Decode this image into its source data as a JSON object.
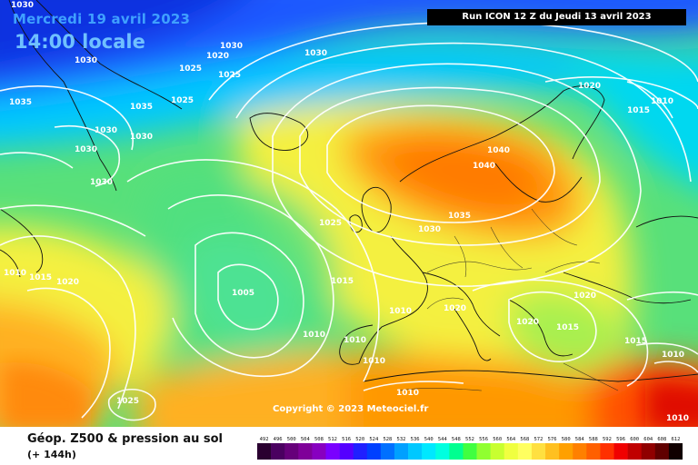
{
  "header": {
    "date": "Mercredi 19 avril 2023",
    "time": "14:00 locale"
  },
  "run_info": "Run ICON 12 Z du Jeudi 13 avril 2023",
  "copyright": "Copyright © 2023 Meteociel.fr",
  "parameter": {
    "title": "Géop. Z500 & pression au sol",
    "subtitle": "(+ 144h)"
  },
  "pressure_labels": [
    "1030",
    "1030",
    "1020",
    "1030",
    "1030",
    "1025",
    "1025",
    "1025",
    "1020",
    "1035",
    "1035",
    "1030",
    "1030",
    "1030",
    "1030",
    "1020",
    "1010",
    "1015",
    "1040",
    "1040",
    "1025",
    "1035",
    "1030",
    "1010",
    "1015",
    "1020",
    "1015",
    "1005",
    "1010",
    "1010",
    "1015",
    "1020",
    "1010",
    "1020",
    "1015",
    "1010",
    "1010",
    "1010",
    "1010",
    "1025"
  ],
  "scale": {
    "labels": [
      "492",
      "496",
      "500",
      "504",
      "508",
      "512",
      "516",
      "520",
      "524",
      "528",
      "532",
      "536",
      "540",
      "544",
      "548",
      "552",
      "556",
      "560",
      "564",
      "568",
      "572",
      "576",
      "580",
      "584",
      "588",
      "592",
      "596",
      "600",
      "604",
      "608",
      "612"
    ],
    "colors": [
      "#2a0030",
      "#4a0060",
      "#66007a",
      "#7f0099",
      "#8800c0",
      "#7a00ff",
      "#5500ff",
      "#2020ff",
      "#0040ff",
      "#0070ff",
      "#00a0ff",
      "#00c8ff",
      "#00e8ff",
      "#00ffe0",
      "#00ff90",
      "#40ff40",
      "#90ff30",
      "#c8ff30",
      "#f0ff40",
      "#ffff60",
      "#ffe040",
      "#ffc020",
      "#ffa000",
      "#ff8000",
      "#ff6000",
      "#ff3000",
      "#f00000",
      "#c00000",
      "#900000",
      "#600000",
      "#100000"
    ]
  }
}
